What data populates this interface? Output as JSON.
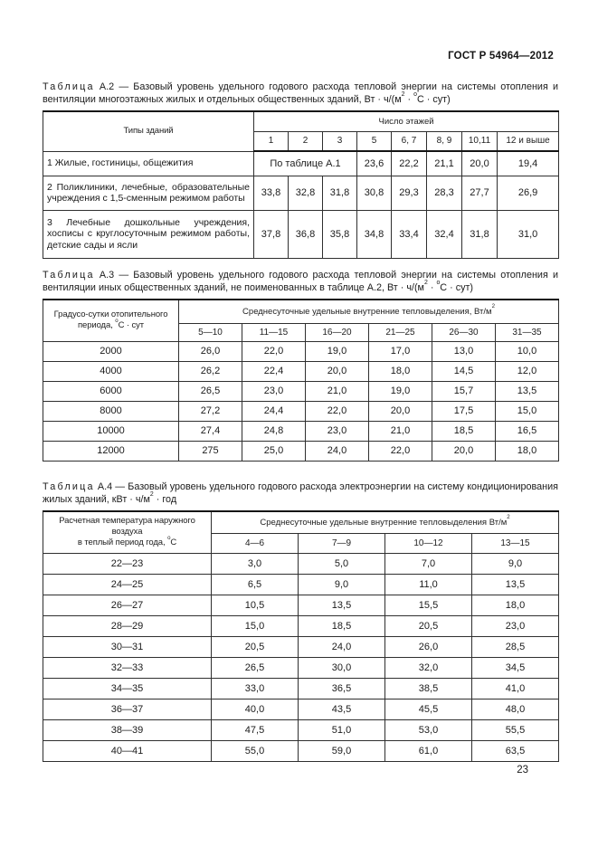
{
  "page": {
    "doc_ref": "ГОСТ Р 54964—2012",
    "page_number": "23"
  },
  "tables": {
    "a2": {
      "caption_word": "Таблица",
      "caption_num": "А.2",
      "caption_rest": "— Базовый уровень удельного годового расхода тепловой энергии на системы отопления и венти­ляции многоэтажных жилых и отдельных общественных зданий, Вт · ч/(м<sup>2</sup> · <sup>о</sup>С · сут)",
      "col1_header": "Типы зданий",
      "group_header": "Число этажей",
      "subcols": [
        "1",
        "2",
        "3",
        "5",
        "6, 7",
        "8, 9",
        "10,11",
        "12 и выше"
      ],
      "rows": [
        {
          "label": "1 Жилые, гостиницы, общежития",
          "span_note": "По таблице А.1",
          "values": [
            "23,6",
            "22,2",
            "21,1",
            "20,0",
            "19,4"
          ]
        },
        {
          "label": "2 Поликлиники, лечебные, образовательные учреждения с 1,5-сменным режимом работы",
          "values": [
            "33,8",
            "32,8",
            "31,8",
            "30,8",
            "29,3",
            "28,3",
            "27,7",
            "26,9"
          ]
        },
        {
          "label": "3 Лечебные дошкольные учреждения, хосписы с круглосуточным режимом работы, детские сады и ясли",
          "values": [
            "37,8",
            "36,8",
            "35,8",
            "34,8",
            "33,4",
            "32,4",
            "31,8",
            "31,0"
          ]
        }
      ]
    },
    "a3": {
      "caption_word": "Таблица",
      "caption_num": "А.3",
      "caption_rest": "— Базовый уровень удельного годового расхода тепловой энергии на системы отопления и венти­ляции иных общественных зданий, не поименованных в таблице А.2, Вт · ч/(м<sup>2</sup> · <sup>о</sup>С · сут)",
      "col1_header": "Градусо-сутки отопительного<br>периода, <sup>о</sup>С · сут",
      "group_header": "Среднесуточные удельные внутренние тепловыделения, Вт/м<sup>2</sup>",
      "subcols": [
        "5—10",
        "11—15",
        "16—20",
        "21—25",
        "26—30",
        "31—35"
      ],
      "rows": [
        {
          "label": "2000",
          "values": [
            "26,0",
            "22,0",
            "19,0",
            "17,0",
            "13,0",
            "10,0"
          ]
        },
        {
          "label": "4000",
          "values": [
            "26,2",
            "22,4",
            "20,0",
            "18,0",
            "14,5",
            "12,0"
          ]
        },
        {
          "label": "6000",
          "values": [
            "26,5",
            "23,0",
            "21,0",
            "19,0",
            "15,7",
            "13,5"
          ]
        },
        {
          "label": "8000",
          "values": [
            "27,2",
            "24,4",
            "22,0",
            "20,0",
            "17,5",
            "15,0"
          ]
        },
        {
          "label": "10000",
          "values": [
            "27,4",
            "24,8",
            "23,0",
            "21,0",
            "18,5",
            "16,5"
          ]
        },
        {
          "label": "12000",
          "values": [
            "275",
            "25,0",
            "24,0",
            "22,0",
            "20,0",
            "18,0"
          ]
        }
      ]
    },
    "a4": {
      "caption_word": "Таблица",
      "caption_num": "А.4",
      "caption_rest": "— Базовый уровень удельного годового расхода электроэнергии на систему кондиционирования жилых зданий, кВт · ч/м<sup>2</sup> · год",
      "col1_header": "Расчетная температура наружного воздуха<br>в теплый период года, <sup>о</sup>С",
      "group_header": "Среднесуточные удельные внутренние тепловыделения Вт/м<sup>2</sup>",
      "subcols": [
        "4—6",
        "7—9",
        "10—12",
        "13—15"
      ],
      "rows": [
        {
          "label": "22—23",
          "values": [
            "3,0",
            "5,0",
            "7,0",
            "9,0"
          ]
        },
        {
          "label": "24—25",
          "values": [
            "6,5",
            "9,0",
            "11,0",
            "13,5"
          ]
        },
        {
          "label": "26—27",
          "values": [
            "10,5",
            "13,5",
            "15,5",
            "18,0"
          ]
        },
        {
          "label": "28—29",
          "values": [
            "15,0",
            "18,5",
            "20,5",
            "23,0"
          ]
        },
        {
          "label": "30—31",
          "values": [
            "20,5",
            "24,0",
            "26,0",
            "28,5"
          ]
        },
        {
          "label": "32—33",
          "values": [
            "26,5",
            "30,0",
            "32,0",
            "34,5"
          ]
        },
        {
          "label": "34—35",
          "values": [
            "33,0",
            "36,5",
            "38,5",
            "41,0"
          ]
        },
        {
          "label": "36—37",
          "values": [
            "40,0",
            "43,5",
            "45,5",
            "48,0"
          ]
        },
        {
          "label": "38—39",
          "values": [
            "47,5",
            "51,0",
            "53,0",
            "55,5"
          ]
        },
        {
          "label": "40—41",
          "values": [
            "55,0",
            "59,0",
            "61,0",
            "63,5"
          ]
        }
      ]
    }
  }
}
